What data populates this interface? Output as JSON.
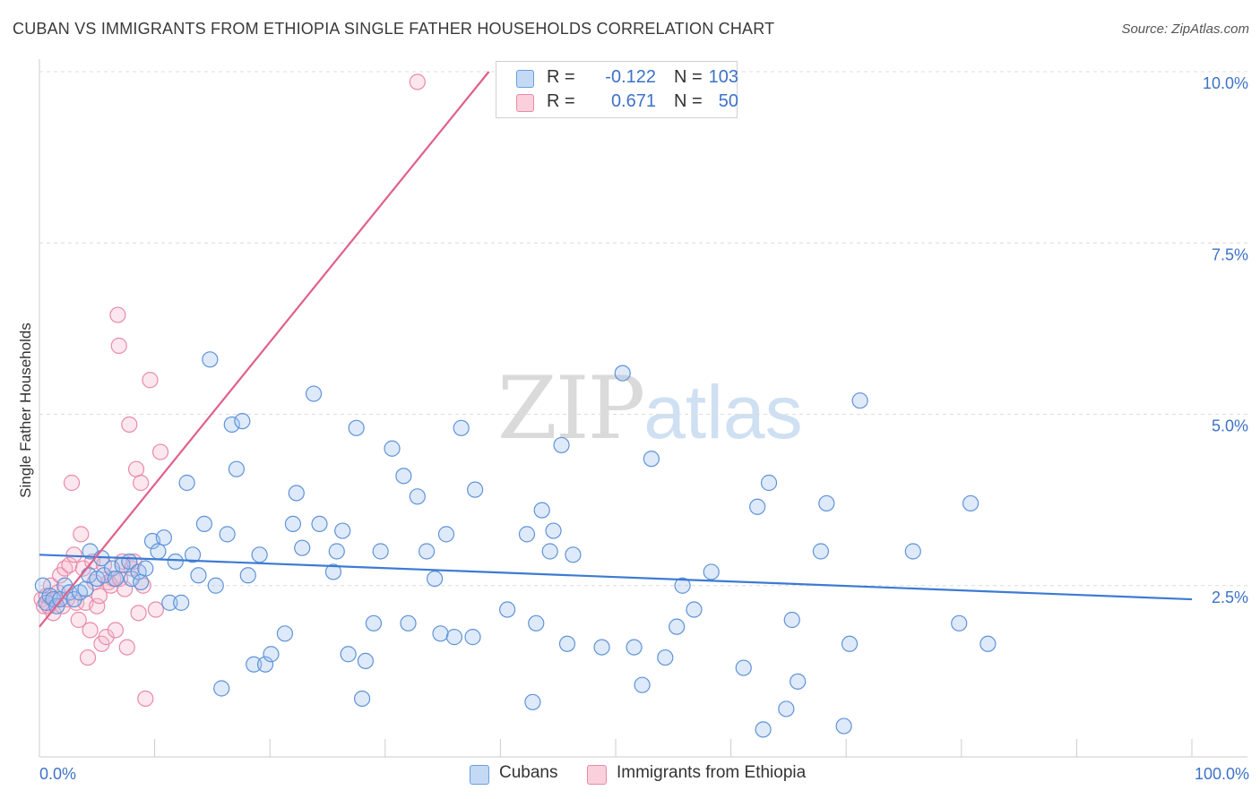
{
  "title": "CUBAN VS IMMIGRANTS FROM ETHIOPIA SINGLE FATHER HOUSEHOLDS CORRELATION CHART",
  "source": "Source: ZipAtlas.com",
  "watermark": {
    "zip": "ZIP",
    "atlas": "atlas"
  },
  "legend": {
    "cubans": {
      "r_label": "R =",
      "r_value": "-0.122",
      "n_label": "N =",
      "n_value": "103",
      "color": "#6a9fe0",
      "fill": "#a9c8f0"
    },
    "ethiopia": {
      "r_label": "R =",
      "r_value": "0.671",
      "n_label": "N =",
      "n_value": "50",
      "color": "#e98aa8",
      "fill": "#f6bfd0"
    }
  },
  "bottom_legend": {
    "cubans": "Cubans",
    "ethiopia": "Immigrants from Ethiopia"
  },
  "chart_data": {
    "type": "scatter",
    "title": "CUBAN VS IMMIGRANTS FROM ETHIOPIA SINGLE FATHER HOUSEHOLDS CORRELATION CHART",
    "xlabel": "",
    "ylabel": "Single Father Households",
    "xlim": [
      0,
      100
    ],
    "ylim": [
      0,
      10
    ],
    "x_tick_labels": [
      "0.0%",
      "100.0%"
    ],
    "y_ticks": [
      2.5,
      5.0,
      7.5,
      10.0
    ],
    "y_tick_labels": [
      "2.5%",
      "5.0%",
      "7.5%",
      "10.0%"
    ],
    "series": [
      {
        "name": "Cubans",
        "color": "#3d7bd3",
        "trend": {
          "x": [
            0,
            100
          ],
          "y": [
            2.95,
            2.3
          ]
        },
        "points": [
          [
            0.3,
            2.5
          ],
          [
            0.6,
            2.25
          ],
          [
            0.9,
            2.35
          ],
          [
            1.2,
            2.3
          ],
          [
            1.5,
            2.2
          ],
          [
            1.8,
            2.3
          ],
          [
            2.2,
            2.5
          ],
          [
            2.6,
            2.4
          ],
          [
            3.0,
            2.3
          ],
          [
            3.5,
            2.4
          ],
          [
            4.0,
            2.45
          ],
          [
            4.3,
            2.65
          ],
          [
            4.4,
            3.0
          ],
          [
            5.0,
            2.6
          ],
          [
            5.4,
            2.9
          ],
          [
            5.6,
            2.65
          ],
          [
            6.3,
            2.75
          ],
          [
            6.6,
            2.6
          ],
          [
            7.2,
            2.8
          ],
          [
            7.8,
            2.85
          ],
          [
            8.0,
            2.6
          ],
          [
            8.6,
            2.7
          ],
          [
            8.8,
            2.55
          ],
          [
            9.2,
            2.75
          ],
          [
            9.8,
            3.15
          ],
          [
            10.3,
            3.0
          ],
          [
            10.8,
            3.2
          ],
          [
            11.3,
            2.25
          ],
          [
            11.8,
            2.85
          ],
          [
            12.3,
            2.25
          ],
          [
            12.8,
            4.0
          ],
          [
            13.3,
            2.95
          ],
          [
            13.8,
            2.65
          ],
          [
            14.3,
            3.4
          ],
          [
            14.8,
            5.8
          ],
          [
            15.3,
            2.5
          ],
          [
            15.8,
            1.0
          ],
          [
            16.3,
            3.25
          ],
          [
            16.7,
            4.85
          ],
          [
            17.1,
            4.2
          ],
          [
            17.6,
            4.9
          ],
          [
            18.1,
            2.65
          ],
          [
            18.6,
            1.35
          ],
          [
            19.1,
            2.95
          ],
          [
            19.6,
            1.35
          ],
          [
            20.1,
            1.5
          ],
          [
            21.3,
            1.8
          ],
          [
            22.0,
            3.4
          ],
          [
            22.3,
            3.85
          ],
          [
            22.8,
            3.05
          ],
          [
            23.8,
            5.3
          ],
          [
            24.3,
            3.4
          ],
          [
            25.5,
            2.7
          ],
          [
            25.8,
            3.0
          ],
          [
            26.3,
            3.3
          ],
          [
            26.8,
            1.5
          ],
          [
            27.5,
            4.8
          ],
          [
            28.0,
            0.85
          ],
          [
            28.3,
            1.4
          ],
          [
            29.0,
            1.95
          ],
          [
            29.6,
            3.0
          ],
          [
            30.6,
            4.5
          ],
          [
            31.6,
            4.1
          ],
          [
            32.0,
            1.95
          ],
          [
            32.8,
            3.8
          ],
          [
            33.6,
            3.0
          ],
          [
            34.3,
            2.6
          ],
          [
            34.8,
            1.8
          ],
          [
            35.3,
            3.25
          ],
          [
            36.0,
            1.75
          ],
          [
            36.6,
            4.8
          ],
          [
            37.6,
            1.75
          ],
          [
            37.8,
            3.9
          ],
          [
            40.6,
            2.15
          ],
          [
            42.3,
            3.25
          ],
          [
            42.8,
            0.8
          ],
          [
            43.1,
            1.95
          ],
          [
            43.6,
            3.6
          ],
          [
            44.3,
            3.0
          ],
          [
            44.6,
            3.3
          ],
          [
            45.3,
            4.55
          ],
          [
            45.8,
            1.65
          ],
          [
            46.3,
            2.95
          ],
          [
            48.8,
            1.6
          ],
          [
            50.6,
            5.6
          ],
          [
            51.6,
            1.6
          ],
          [
            52.3,
            1.05
          ],
          [
            53.1,
            4.35
          ],
          [
            54.3,
            1.45
          ],
          [
            55.3,
            1.9
          ],
          [
            55.8,
            2.5
          ],
          [
            56.8,
            2.15
          ],
          [
            58.3,
            2.7
          ],
          [
            61.1,
            1.3
          ],
          [
            62.3,
            3.65
          ],
          [
            62.8,
            0.4
          ],
          [
            63.3,
            4.0
          ],
          [
            64.8,
            0.7
          ],
          [
            65.3,
            2.0
          ],
          [
            65.8,
            1.1
          ],
          [
            67.8,
            3.0
          ],
          [
            68.3,
            3.7
          ],
          [
            69.8,
            0.45
          ],
          [
            70.3,
            1.65
          ],
          [
            71.2,
            5.2
          ],
          [
            75.8,
            3.0
          ],
          [
            79.8,
            1.95
          ],
          [
            80.8,
            3.7
          ],
          [
            82.3,
            1.65
          ]
        ]
      },
      {
        "name": "Immigrants from Ethiopia",
        "color": "#e0608a",
        "trend": {
          "x": [
            0,
            39.0
          ],
          "y": [
            1.9,
            10.0
          ]
        },
        "points": [
          [
            0.2,
            2.3
          ],
          [
            0.4,
            2.2
          ],
          [
            0.6,
            2.35
          ],
          [
            0.8,
            2.2
          ],
          [
            1.0,
            2.5
          ],
          [
            1.2,
            2.1
          ],
          [
            1.4,
            2.3
          ],
          [
            1.6,
            2.4
          ],
          [
            1.8,
            2.65
          ],
          [
            2.0,
            2.2
          ],
          [
            2.2,
            2.75
          ],
          [
            2.4,
            2.3
          ],
          [
            2.6,
            2.8
          ],
          [
            2.8,
            4.0
          ],
          [
            3.0,
            2.95
          ],
          [
            3.2,
            2.25
          ],
          [
            3.4,
            2.0
          ],
          [
            3.6,
            3.25
          ],
          [
            3.8,
            2.75
          ],
          [
            4.0,
            2.25
          ],
          [
            4.2,
            1.45
          ],
          [
            4.4,
            1.85
          ],
          [
            4.6,
            2.85
          ],
          [
            4.8,
            2.55
          ],
          [
            5.0,
            2.2
          ],
          [
            5.2,
            2.35
          ],
          [
            5.4,
            1.65
          ],
          [
            5.6,
            2.8
          ],
          [
            5.8,
            1.75
          ],
          [
            6.0,
            2.55
          ],
          [
            6.2,
            2.5
          ],
          [
            6.4,
            2.6
          ],
          [
            6.6,
            1.85
          ],
          [
            6.8,
            6.45
          ],
          [
            6.9,
            6.0
          ],
          [
            7.0,
            2.6
          ],
          [
            7.2,
            2.85
          ],
          [
            7.4,
            2.45
          ],
          [
            7.6,
            1.6
          ],
          [
            7.8,
            4.85
          ],
          [
            8.0,
            2.75
          ],
          [
            8.2,
            2.85
          ],
          [
            8.4,
            4.2
          ],
          [
            8.6,
            2.1
          ],
          [
            8.8,
            4.0
          ],
          [
            9.0,
            2.5
          ],
          [
            9.2,
            0.85
          ],
          [
            9.6,
            5.5
          ],
          [
            10.1,
            2.15
          ],
          [
            10.5,
            4.45
          ],
          [
            32.8,
            9.85
          ]
        ]
      }
    ]
  }
}
